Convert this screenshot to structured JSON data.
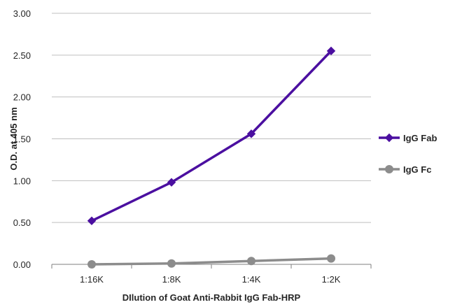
{
  "chart_data": {
    "type": "line",
    "title": "",
    "xlabel": "DIlution of Goat Anti-Rabbit IgG Fab-HRP",
    "ylabel": "O.D. at 405 nm",
    "categories": [
      "1:16K",
      "1:8K",
      "1:4K",
      "1:2K"
    ],
    "ylim": [
      0,
      3
    ],
    "yticks": [
      "0.00",
      "0.50",
      "1.00",
      "1.50",
      "2.00",
      "2.50",
      "3.00"
    ],
    "grid": true,
    "legend_position": "right",
    "series": [
      {
        "name": "IgG Fab",
        "values": [
          0.52,
          0.98,
          1.56,
          2.55
        ],
        "color": "#4b0fa0",
        "marker": "diamond"
      },
      {
        "name": "IgG Fc",
        "values": [
          0.0,
          0.01,
          0.04,
          0.07
        ],
        "color": "#8c8c8c",
        "marker": "circle"
      }
    ]
  }
}
